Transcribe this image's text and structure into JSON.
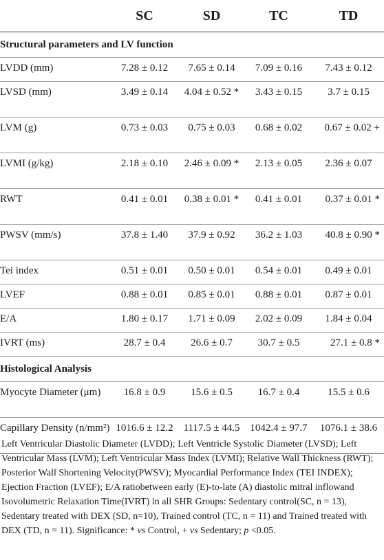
{
  "columns": [
    "",
    "SC",
    "SD",
    "TC",
    "TD"
  ],
  "section_structural": "Structural parameters and LV function",
  "section_histo": "Histological Analysis",
  "rows_structural": [
    {
      "label": "LVDD (mm)",
      "sc": "7.28 ± 0.12",
      "sd": "7.65 ± 0.14",
      "tc": "7.09 ± 0.16",
      "td": "7.43 ± 0.12"
    },
    {
      "label": "LVSD (mm)",
      "sc": "3.49 ± 0.14",
      "sd": "4.04 ± 0.52 *",
      "tc": "3.43 ± 0.15",
      "td": "3.7 ± 0.15"
    },
    {
      "label": "LVM (g)",
      "sc": "0.73 ± 0.03",
      "sd": "0.75 ± 0.03",
      "tc": "0.68 ± 0.02",
      "td": "0.67 ± 0.02 +"
    },
    {
      "label": "LVMI (g/kg)",
      "sc": "2.18 ± 0.10",
      "sd": "2.46 ± 0.09 *",
      "tc": "2.13 ± 0.05",
      "td": "2.36 ± 0.07"
    },
    {
      "label": "RWT",
      "sc": "0.41 ± 0.01",
      "sd": "0.38 ± 0.01 *",
      "tc": "0.41 ± 0.01",
      "td": "0.37 ± 0.01 *"
    },
    {
      "label": "PWSV (mm/s)",
      "sc": "37.8 ± 1.40",
      "sd": "37.9 ± 0.92",
      "tc": "36.2 ± 1.03",
      "td": "40.8 ± 0.90 *"
    },
    {
      "label": "Tei index",
      "sc": "0.51 ± 0.01",
      "sd": "0.50 ± 0.01",
      "tc": "0.54 ± 0.01",
      "td": "0.49 ± 0.01"
    },
    {
      "label": "LVEF",
      "sc": "0.88 ± 0.01",
      "sd": "0.85 ± 0.01",
      "tc": "0.88 ± 0.01",
      "td": "0.87 ± 0.01"
    },
    {
      "label": "E/A",
      "sc": "1.80 ± 0.17",
      "sd": "1.71 ± 0.09",
      "tc": "2.02 ± 0.09",
      "td": "1.84 ± 0.04"
    },
    {
      "label": "IVRT (ms)",
      "sc": "28.7 ± 0.4",
      "sd": "26.6 ± 0.7",
      "tc": "30.7 ± 0.5",
      "td": "27.1 ± 0.8 *"
    }
  ],
  "rows_histo": [
    {
      "label": "Myocyte Diameter (μm)",
      "sc": "16.8 ± 0.9",
      "sd": "15.6 ± 0.5",
      "tc": "16.7 ± 0.4",
      "td": "15.5 ± 0.6"
    },
    {
      "label": "Capillary Density (n/mm²)",
      "sc": "1016.6 ± 12.2",
      "sd": "1117.5 ± 44.5",
      "tc": "1042.4 ± 97.7",
      "td": "1076.1 ± 38.6"
    }
  ],
  "footnote": {
    "main": "Left Ventricular Diastolic Diameter (LVDD); Left Ventricle Systolic Diameter (LVSD); Left Ventricular Mass (LVM); Left Ventricular Mass Index (LVMI); Relative Wall Thickness (RWT); Posterior Wall Shortening Velocity(PWSV); Myocardial Performance Index (TEI INDEX); Ejection Fraction (LVEF); E/A ratiobetween early (E)-to-late (A) diastolic mitral inflowand Isovolumetric Relaxation Time(IVRT) in all SHR Groups: Sedentary control(SC, n = 13), Sedentary treated with DEX (SD, n=10), Trained control (TC, n = 11) and Trained treated with DEX (TD, n = 11). Significance: *",
    "vs1": "vs",
    "control": " Control, + ",
    "vs2": "vs",
    "sedentary": " Sedentary; ",
    "p": "p",
    "threshold": " <0.05."
  }
}
